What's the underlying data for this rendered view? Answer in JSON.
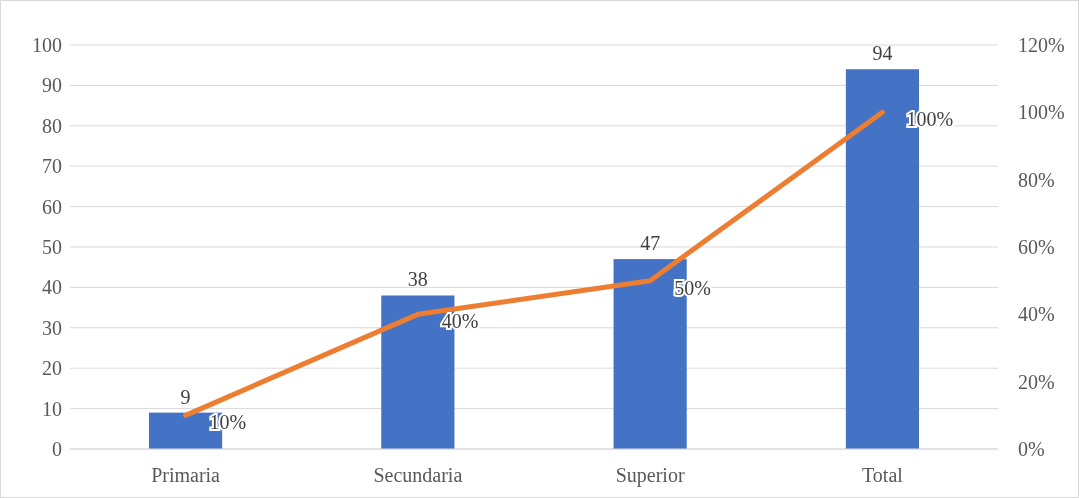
{
  "chart_data": {
    "type": "bar",
    "categories": [
      "Primaria",
      "Secundaria",
      "Superior",
      "Total"
    ],
    "series": [
      {
        "color": "#4472c4",
        "values": [
          9,
          38,
          47,
          94
        ],
        "value_labels": [
          "9",
          "38",
          "47",
          "94"
        ]
      },
      {
        "type": "line",
        "axis": "y2",
        "color": "#ed7d31",
        "values": [
          10,
          40,
          50,
          100
        ],
        "value_labels": [
          "10%",
          "40%",
          "50%",
          "100%"
        ]
      }
    ],
    "ylim": [
      0,
      100
    ],
    "yticks": [
      0,
      10,
      20,
      30,
      40,
      50,
      60,
      70,
      80,
      90,
      100
    ],
    "y2lim": [
      0,
      120
    ],
    "y2ticks": [
      {
        "value": 0,
        "label": "0%"
      },
      {
        "value": 20,
        "label": "20%"
      },
      {
        "value": 40,
        "label": "40%"
      },
      {
        "value": 60,
        "label": "60%"
      },
      {
        "value": 80,
        "label": "80%"
      },
      {
        "value": 100,
        "label": "100%"
      },
      {
        "value": 120,
        "label": "120%"
      }
    ],
    "grid": "y",
    "marker": "none",
    "line_style": "solid"
  }
}
